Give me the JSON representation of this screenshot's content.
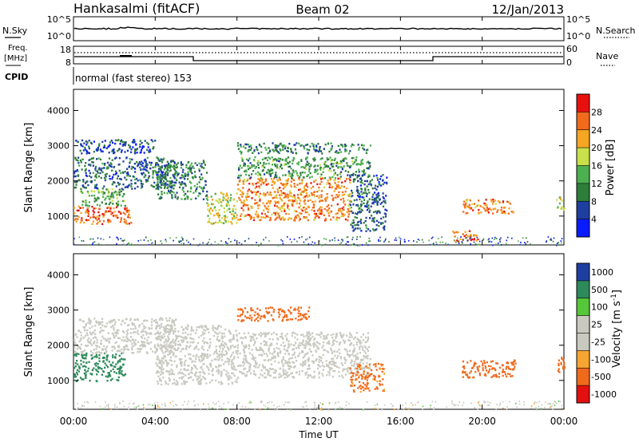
{
  "header": {
    "station": "Hankasalmi (fitACF)",
    "beam": "Beam 02",
    "date": "12/Jan/2013"
  },
  "top_panels": {
    "nsky_label": "N.Sky",
    "nsky_ticks": [
      "10^5",
      "10^0"
    ],
    "nsearch_label": "N.Search",
    "nsearch_ticks": [
      "10^5",
      "10^0"
    ],
    "freq_label_1": "Freq.",
    "freq_label_2": "[MHz]",
    "freq_ticks": [
      "18",
      "8"
    ],
    "nave_label": "Nave",
    "nave_ticks": [
      "60",
      "0"
    ],
    "cpid_label": "CPID",
    "cpid_text": "normal (fast stereo) 153"
  },
  "colors": {
    "power": [
      "#0a1cff",
      "#1f3fa0",
      "#2f7d3a",
      "#4caf50",
      "#c8e04a",
      "#f5a623",
      "#f26a1b",
      "#e8100f"
    ],
    "velocity": [
      "#e21010",
      "#f06a1c",
      "#f7a531",
      "#c9c9c0",
      "#c9c9c0",
      "#56c73a",
      "#2e8a5a",
      "#1f3fa0"
    ]
  },
  "chart_data": [
    {
      "type": "heatmap",
      "quantity": "power",
      "ylabel": "Slant Range [km]",
      "xlabel": "Time UT",
      "xticks": [
        "00:00",
        "04:00",
        "08:00",
        "12:00",
        "16:00",
        "20:00",
        "00:00"
      ],
      "yticks": [
        "1000",
        "2000",
        "3000",
        "4000"
      ],
      "ylim": [
        180,
        4600
      ],
      "xlim_hours": [
        0,
        24
      ],
      "colorbar_label": "Power [dB]",
      "colorbar_ticks": [
        "4",
        "8",
        "12",
        "16",
        "20",
        "24",
        "28"
      ],
      "colorbar_range": [
        0,
        32
      ],
      "regions": [
        {
          "t0": 0.0,
          "t1": 2.8,
          "r0": 800,
          "r1": 1300,
          "value": 26
        },
        {
          "t0": 0.3,
          "t1": 2.5,
          "r0": 1300,
          "r1": 1800,
          "value": 14
        },
        {
          "t0": 0.0,
          "t1": 5.0,
          "r0": 1800,
          "r1": 2700,
          "value": 8
        },
        {
          "t0": 0.0,
          "t1": 4.0,
          "r0": 2800,
          "r1": 3200,
          "value": 6
        },
        {
          "t0": 4.0,
          "t1": 6.5,
          "r0": 1500,
          "r1": 2600,
          "value": 10
        },
        {
          "t0": 6.5,
          "t1": 8.0,
          "r0": 800,
          "r1": 1700,
          "value": 18
        },
        {
          "t0": 8.0,
          "t1": 13.5,
          "r0": 900,
          "r1": 2100,
          "value": 24
        },
        {
          "t0": 8.0,
          "t1": 14.5,
          "r0": 2100,
          "r1": 2700,
          "value": 12
        },
        {
          "t0": 8.0,
          "t1": 14.5,
          "r0": 2800,
          "r1": 3100,
          "value": 10
        },
        {
          "t0": 13.5,
          "t1": 15.3,
          "r0": 600,
          "r1": 2200,
          "value": 8
        },
        {
          "t0": 19.0,
          "t1": 21.5,
          "r0": 1100,
          "r1": 1500,
          "value": 24
        },
        {
          "t0": 18.5,
          "t1": 19.8,
          "r0": 300,
          "r1": 600,
          "value": 26
        },
        {
          "t0": 23.6,
          "t1": 24.0,
          "r0": 1200,
          "r1": 1600,
          "value": 18
        }
      ]
    },
    {
      "type": "heatmap",
      "quantity": "velocity",
      "ylabel": "Slant Range [km]",
      "xlabel": "Time UT",
      "xticks": [
        "00:00",
        "04:00",
        "08:00",
        "12:00",
        "16:00",
        "20:00",
        "00:00"
      ],
      "yticks": [
        "1000",
        "2000",
        "3000",
        "4000"
      ],
      "ylim": [
        180,
        4600
      ],
      "xlim_hours": [
        0,
        24
      ],
      "colorbar_label": "Velocity [m s^-1]",
      "colorbar_ticks": [
        "1000",
        "500",
        "100",
        "25",
        "-25",
        "-100",
        "-500",
        "-1000"
      ],
      "regions": [
        {
          "t0": 0.0,
          "t1": 2.5,
          "r0": 1000,
          "r1": 1800,
          "value": 300
        },
        {
          "t0": 0.0,
          "t1": 5.0,
          "r0": 1800,
          "r1": 2800,
          "value": 0
        },
        {
          "t0": 4.0,
          "t1": 8.0,
          "r0": 900,
          "r1": 2600,
          "value": 0
        },
        {
          "t0": 8.0,
          "t1": 14.5,
          "r0": 1100,
          "r1": 2400,
          "value": 0
        },
        {
          "t0": 8.0,
          "t1": 11.5,
          "r0": 2700,
          "r1": 3100,
          "value": -300
        },
        {
          "t0": 13.5,
          "t1": 15.2,
          "r0": 700,
          "r1": 1500,
          "value": -150
        },
        {
          "t0": 19.0,
          "t1": 21.6,
          "r0": 1100,
          "r1": 1600,
          "value": -300
        },
        {
          "t0": 23.6,
          "t1": 24.0,
          "r0": 1200,
          "r1": 1700,
          "value": -300
        }
      ]
    }
  ]
}
